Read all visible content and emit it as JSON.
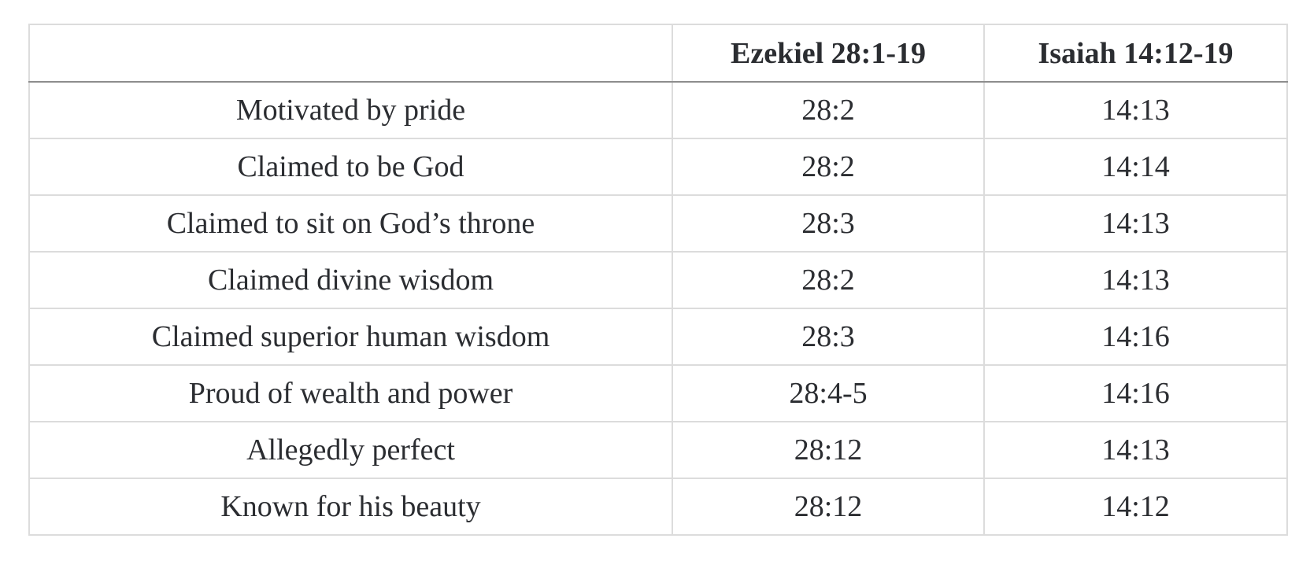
{
  "table": {
    "headers": [
      "",
      "Ezekiel 28:1-19",
      "Isaiah 14:12-19"
    ],
    "rows": [
      [
        "Motivated by pride",
        "28:2",
        "14:13"
      ],
      [
        "Claimed to be God",
        "28:2",
        "14:14"
      ],
      [
        "Claimed to sit on God’s throne",
        "28:3",
        "14:13"
      ],
      [
        "Claimed divine wisdom",
        "28:2",
        "14:13"
      ],
      [
        "Claimed superior human wisdom",
        "28:3",
        "14:16"
      ],
      [
        "Proud of wealth and power",
        "28:4-5",
        "14:16"
      ],
      [
        "Allegedly perfect",
        "28:12",
        "14:13"
      ],
      [
        "Known for his beauty",
        "28:12",
        "14:12"
      ]
    ]
  },
  "colors": {
    "text": "#2b2d31",
    "grid": "#dcdcdc",
    "header_rule": "#8d8d8d",
    "background": "#ffffff"
  }
}
